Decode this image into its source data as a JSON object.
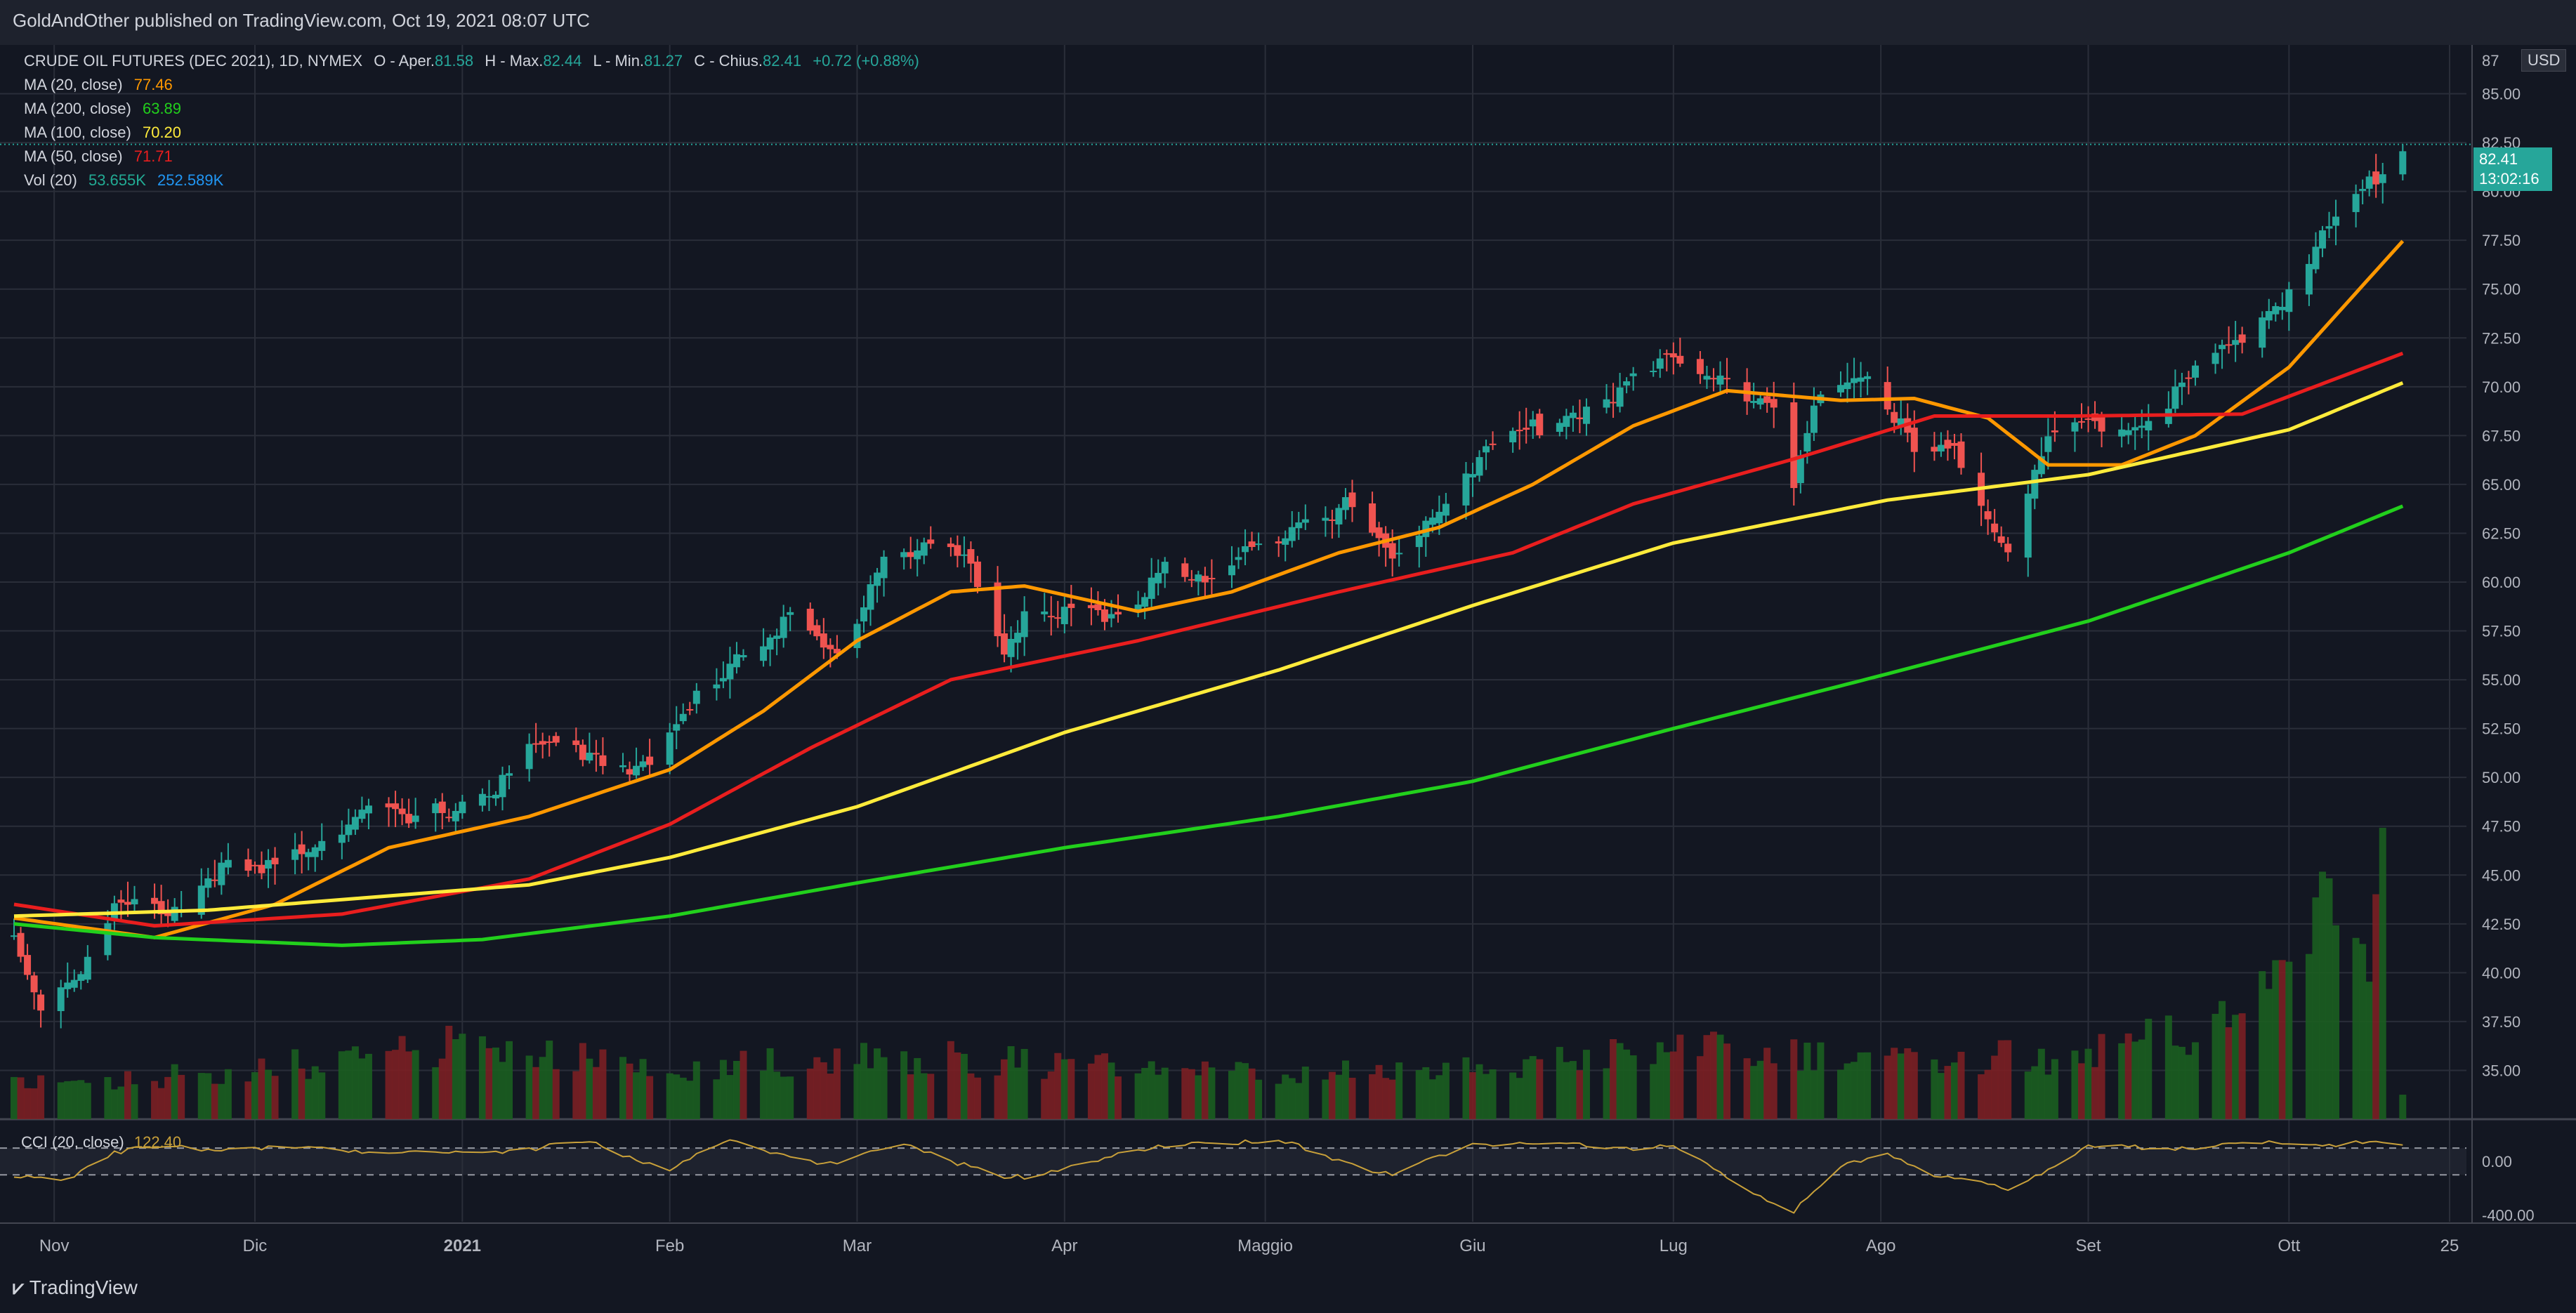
{
  "header": {
    "published": "GoldAndOther published on TradingView.com, Oct 19, 2021 08:07 UTC"
  },
  "legend": {
    "symbol_line": {
      "symbol": "CRUDE OIL FUTURES (DEC 2021), 1D, NYMEX",
      "open_label": "O - Aper.",
      "open_value": "81.58",
      "high_label": "H - Max.",
      "high_value": "82.44",
      "low_label": "L - Min.",
      "low_value": "81.27",
      "close_label": "C - Chius.",
      "close_value": "82.41",
      "change": "+0.72 (+0.88%)"
    },
    "indicators": [
      {
        "label": "MA (20, close)",
        "value": "77.46",
        "color": "#ff9800"
      },
      {
        "label": "MA (200, close)",
        "value": "63.89",
        "color": "#22d01c"
      },
      {
        "label": "MA (100, close)",
        "value": "70.20",
        "color": "#ffeb3b"
      },
      {
        "label": "MA (50, close)",
        "value": "71.71",
        "color": "#e91e1e"
      }
    ],
    "volume": {
      "label": "Vol (20)",
      "value1": "53.655K",
      "value2": "252.589K",
      "color1": "#22ab94",
      "color2": "#2196f3"
    }
  },
  "price_badge": {
    "price": "82.41",
    "countdown": "13:02:16",
    "color": "#26a69a"
  },
  "currency": "USD",
  "cci": {
    "label": "CCI (20, close)",
    "value": "122.40",
    "color": "#c8a03a"
  },
  "footer": {
    "logo_mark": "⩗",
    "logo_text": "TradingView"
  },
  "chart_data": {
    "type": "candlestick",
    "title": "CRUDE OIL FUTURES (DEC 2021), 1D, NYMEX",
    "x_range": [
      "2020-10-26",
      "2021-10-25"
    ],
    "y_axis": {
      "ticks": [
        "85.00",
        "82.50",
        "80.00",
        "77.50",
        "75.00",
        "72.50",
        "70.00",
        "67.50",
        "65.00",
        "62.50",
        "60.00",
        "57.50",
        "55.00",
        "52.50",
        "50.00",
        "47.50",
        "45.00",
        "42.50",
        "40.00",
        "37.50",
        "35.00"
      ],
      "ylim": [
        32.5,
        87.5
      ],
      "top_tick_partial": "87"
    },
    "x_ticks": [
      "Nov",
      "Dic",
      "2021",
      "Feb",
      "Mar",
      "Apr",
      "Maggio",
      "Giu",
      "Lug",
      "Ago",
      "Set",
      "Ott",
      "25"
    ],
    "colors": {
      "up": "#26a69a",
      "down": "#ef5350",
      "background": "#131722",
      "grid": "#2a2e39"
    },
    "close_anchors": [
      {
        "date": "2020-10-26",
        "value": 41.8
      },
      {
        "date": "2020-10-30",
        "value": 38.5
      },
      {
        "date": "2020-11-06",
        "value": 40.5
      },
      {
        "date": "2020-11-10",
        "value": 43.2
      },
      {
        "date": "2020-11-20",
        "value": 43.4
      },
      {
        "date": "2020-11-25",
        "value": 45.3
      },
      {
        "date": "2020-12-02",
        "value": 45.0
      },
      {
        "date": "2020-12-11",
        "value": 47.0
      },
      {
        "date": "2020-12-18",
        "value": 48.4
      },
      {
        "date": "2020-12-24",
        "value": 47.6
      },
      {
        "date": "2021-01-06",
        "value": 49.5
      },
      {
        "date": "2021-01-12",
        "value": 51.5
      },
      {
        "date": "2021-01-20",
        "value": 51.3
      },
      {
        "date": "2021-01-29",
        "value": 50.4
      },
      {
        "date": "2021-02-05",
        "value": 54.0
      },
      {
        "date": "2021-02-12",
        "value": 56.7
      },
      {
        "date": "2021-02-19",
        "value": 58.0
      },
      {
        "date": "2021-02-26",
        "value": 56.0
      },
      {
        "date": "2021-03-05",
        "value": 61.5
      },
      {
        "date": "2021-03-12",
        "value": 61.8
      },
      {
        "date": "2021-03-17",
        "value": 61.2
      },
      {
        "date": "2021-03-23",
        "value": 56.5
      },
      {
        "date": "2021-03-26",
        "value": 58.7
      },
      {
        "date": "2021-04-02",
        "value": 58.3
      },
      {
        "date": "2021-04-09",
        "value": 57.8
      },
      {
        "date": "2021-04-16",
        "value": 61.2
      },
      {
        "date": "2021-04-22",
        "value": 59.8
      },
      {
        "date": "2021-04-30",
        "value": 61.8
      },
      {
        "date": "2021-05-07",
        "value": 63.6
      },
      {
        "date": "2021-05-14",
        "value": 63.8
      },
      {
        "date": "2021-05-20",
        "value": 61.0
      },
      {
        "date": "2021-05-28",
        "value": 64.5
      },
      {
        "date": "2021-06-04",
        "value": 67.0
      },
      {
        "date": "2021-06-11",
        "value": 68.0
      },
      {
        "date": "2021-06-18",
        "value": 69.0
      },
      {
        "date": "2021-06-25",
        "value": 70.2
      },
      {
        "date": "2021-07-02",
        "value": 71.5
      },
      {
        "date": "2021-07-09",
        "value": 70.6
      },
      {
        "date": "2021-07-16",
        "value": 68.5
      },
      {
        "date": "2021-07-19",
        "value": 64.8
      },
      {
        "date": "2021-07-23",
        "value": 69.7
      },
      {
        "date": "2021-07-30",
        "value": 70.9
      },
      {
        "date": "2021-08-06",
        "value": 66.6
      },
      {
        "date": "2021-08-13",
        "value": 66.4
      },
      {
        "date": "2021-08-20",
        "value": 61.8
      },
      {
        "date": "2021-08-23",
        "value": 64.8
      },
      {
        "date": "2021-08-27",
        "value": 67.6
      },
      {
        "date": "2021-09-03",
        "value": 67.8
      },
      {
        "date": "2021-09-10",
        "value": 68.4
      },
      {
        "date": "2021-09-17",
        "value": 70.6
      },
      {
        "date": "2021-09-24",
        "value": 72.5
      },
      {
        "date": "2021-10-01",
        "value": 75.0
      },
      {
        "date": "2021-10-08",
        "value": 78.6
      },
      {
        "date": "2021-10-15",
        "value": 81.2
      },
      {
        "date": "2021-10-18",
        "value": 82.41
      }
    ],
    "moving_averages": [
      {
        "name": "MA (20, close)",
        "color": "#ff9800",
        "points": [
          {
            "date": "2020-10-26",
            "value": 42.8
          },
          {
            "date": "2020-11-16",
            "value": 41.8
          },
          {
            "date": "2020-12-04",
            "value": 43.5
          },
          {
            "date": "2020-12-21",
            "value": 46.4
          },
          {
            "date": "2021-01-11",
            "value": 48.0
          },
          {
            "date": "2021-02-01",
            "value": 50.4
          },
          {
            "date": "2021-02-15",
            "value": 53.4
          },
          {
            "date": "2021-03-01",
            "value": 57.0
          },
          {
            "date": "2021-03-15",
            "value": 59.5
          },
          {
            "date": "2021-03-26",
            "value": 59.8
          },
          {
            "date": "2021-04-12",
            "value": 58.5
          },
          {
            "date": "2021-04-26",
            "value": 59.5
          },
          {
            "date": "2021-05-12",
            "value": 61.5
          },
          {
            "date": "2021-05-27",
            "value": 62.8
          },
          {
            "date": "2021-06-10",
            "value": 65.0
          },
          {
            "date": "2021-06-25",
            "value": 68.0
          },
          {
            "date": "2021-07-09",
            "value": 69.8
          },
          {
            "date": "2021-07-26",
            "value": 69.3
          },
          {
            "date": "2021-08-06",
            "value": 69.4
          },
          {
            "date": "2021-08-17",
            "value": 68.4
          },
          {
            "date": "2021-08-26",
            "value": 66.0
          },
          {
            "date": "2021-09-06",
            "value": 66.0
          },
          {
            "date": "2021-09-17",
            "value": 67.5
          },
          {
            "date": "2021-10-01",
            "value": 71.0
          },
          {
            "date": "2021-10-18",
            "value": 77.46
          }
        ]
      },
      {
        "name": "MA (50, close)",
        "color": "#e91e1e",
        "points": [
          {
            "date": "2020-10-26",
            "value": 43.5
          },
          {
            "date": "2020-11-16",
            "value": 42.4
          },
          {
            "date": "2020-12-14",
            "value": 43.0
          },
          {
            "date": "2021-01-11",
            "value": 44.8
          },
          {
            "date": "2021-02-01",
            "value": 47.6
          },
          {
            "date": "2021-02-22",
            "value": 51.5
          },
          {
            "date": "2021-03-15",
            "value": 55.0
          },
          {
            "date": "2021-04-12",
            "value": 57.0
          },
          {
            "date": "2021-05-12",
            "value": 59.5
          },
          {
            "date": "2021-06-07",
            "value": 61.5
          },
          {
            "date": "2021-06-25",
            "value": 64.0
          },
          {
            "date": "2021-07-19",
            "value": 66.3
          },
          {
            "date": "2021-08-09",
            "value": 68.5
          },
          {
            "date": "2021-08-30",
            "value": 68.5
          },
          {
            "date": "2021-09-24",
            "value": 68.6
          },
          {
            "date": "2021-10-18",
            "value": 71.71
          }
        ]
      },
      {
        "name": "MA (100, close)",
        "color": "#ffeb3b",
        "points": [
          {
            "date": "2020-10-26",
            "value": 42.9
          },
          {
            "date": "2020-11-24",
            "value": 43.2
          },
          {
            "date": "2021-01-11",
            "value": 44.5
          },
          {
            "date": "2021-02-01",
            "value": 45.9
          },
          {
            "date": "2021-03-01",
            "value": 48.5
          },
          {
            "date": "2021-04-01",
            "value": 52.3
          },
          {
            "date": "2021-05-03",
            "value": 55.5
          },
          {
            "date": "2021-06-01",
            "value": 58.8
          },
          {
            "date": "2021-07-01",
            "value": 62.0
          },
          {
            "date": "2021-08-02",
            "value": 64.2
          },
          {
            "date": "2021-09-01",
            "value": 65.5
          },
          {
            "date": "2021-10-01",
            "value": 67.8
          },
          {
            "date": "2021-10-18",
            "value": 70.2
          }
        ]
      },
      {
        "name": "MA (200, close)",
        "color": "#22d01c",
        "points": [
          {
            "date": "2020-10-26",
            "value": 42.5
          },
          {
            "date": "2020-11-16",
            "value": 41.8
          },
          {
            "date": "2020-12-14",
            "value": 41.4
          },
          {
            "date": "2021-01-04",
            "value": 41.7
          },
          {
            "date": "2021-02-01",
            "value": 42.9
          },
          {
            "date": "2021-03-01",
            "value": 44.6
          },
          {
            "date": "2021-04-01",
            "value": 46.4
          },
          {
            "date": "2021-05-03",
            "value": 48.0
          },
          {
            "date": "2021-06-01",
            "value": 49.8
          },
          {
            "date": "2021-07-01",
            "value": 52.5
          },
          {
            "date": "2021-08-02",
            "value": 55.3
          },
          {
            "date": "2021-09-01",
            "value": 58.0
          },
          {
            "date": "2021-10-01",
            "value": 61.5
          },
          {
            "date": "2021-10-18",
            "value": 63.89
          }
        ]
      }
    ],
    "volume_anchors": [
      {
        "date": "2020-10-26",
        "value": 60
      },
      {
        "date": "2020-12-01",
        "value": 90
      },
      {
        "date": "2021-01-04",
        "value": 140
      },
      {
        "date": "2021-02-01",
        "value": 90
      },
      {
        "date": "2021-03-01",
        "value": 120
      },
      {
        "date": "2021-04-01",
        "value": 100
      },
      {
        "date": "2021-05-01",
        "value": 80
      },
      {
        "date": "2021-06-01",
        "value": 90
      },
      {
        "date": "2021-07-01",
        "value": 130
      },
      {
        "date": "2021-08-01",
        "value": 100
      },
      {
        "date": "2021-09-01",
        "value": 120
      },
      {
        "date": "2021-09-24",
        "value": 180
      },
      {
        "date": "2021-10-06",
        "value": 380
      },
      {
        "date": "2021-10-13",
        "value": 300
      },
      {
        "date": "2021-10-15",
        "value": 420
      },
      {
        "date": "2021-10-18",
        "value": 55
      }
    ],
    "cci": {
      "ticks": [
        "0.00",
        "-400.00"
      ],
      "levels": [
        100,
        -100
      ],
      "ylim": [
        -450,
        300
      ],
      "anchors": [
        {
          "date": "2020-10-26",
          "value": -120
        },
        {
          "date": "2020-11-02",
          "value": -150
        },
        {
          "date": "2020-11-10",
          "value": 80
        },
        {
          "date": "2020-12-01",
          "value": 110
        },
        {
          "date": "2021-01-01",
          "value": 60
        },
        {
          "date": "2021-01-20",
          "value": 140
        },
        {
          "date": "2021-02-01",
          "value": -60
        },
        {
          "date": "2021-02-10",
          "value": 160
        },
        {
          "date": "2021-02-26",
          "value": -40
        },
        {
          "date": "2021-03-08",
          "value": 150
        },
        {
          "date": "2021-03-23",
          "value": -140
        },
        {
          "date": "2021-04-01",
          "value": -40
        },
        {
          "date": "2021-04-20",
          "value": 150
        },
        {
          "date": "2021-05-05",
          "value": 130
        },
        {
          "date": "2021-05-20",
          "value": -110
        },
        {
          "date": "2021-06-01",
          "value": 140
        },
        {
          "date": "2021-07-01",
          "value": 100
        },
        {
          "date": "2021-07-19",
          "value": -380
        },
        {
          "date": "2021-07-26",
          "value": -50
        },
        {
          "date": "2021-08-01",
          "value": 90
        },
        {
          "date": "2021-08-10",
          "value": -120
        },
        {
          "date": "2021-08-20",
          "value": -200
        },
        {
          "date": "2021-09-01",
          "value": 100
        },
        {
          "date": "2021-09-15",
          "value": 110
        },
        {
          "date": "2021-10-01",
          "value": 140
        },
        {
          "date": "2021-10-18",
          "value": 122
        }
      ]
    }
  }
}
